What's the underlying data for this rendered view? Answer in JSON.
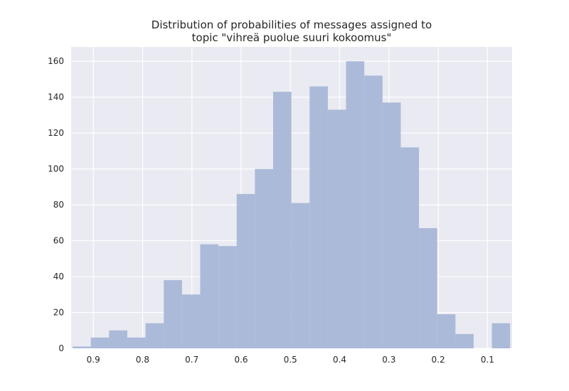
{
  "chart_data": {
    "type": "bar",
    "title_lines": [
      "Distribution of probabilities of messages assigned to",
      "topic \"vihreä puolue suuri kokoomus\""
    ],
    "xlabel": "",
    "ylabel": "",
    "x_reversed": true,
    "xlim": [
      0.945,
      0.05
    ],
    "ylim": [
      0,
      168
    ],
    "x_ticks": [
      0.9,
      0.8,
      0.7,
      0.6,
      0.5,
      0.4,
      0.3,
      0.2,
      0.1
    ],
    "x_tick_labels": [
      "0.9",
      "0.8",
      "0.7",
      "0.6",
      "0.5",
      "0.4",
      "0.3",
      "0.2",
      "0.1"
    ],
    "y_ticks": [
      0,
      20,
      40,
      60,
      80,
      100,
      120,
      140,
      160
    ],
    "y_tick_labels": [
      "0",
      "20",
      "40",
      "60",
      "80",
      "100",
      "120",
      "140",
      "160"
    ],
    "grid": true,
    "bar_color": "#a8b7d6",
    "background_color": "#eaeaf2",
    "grid_color": "#ffffff",
    "bins": [
      {
        "x_start": 0.942,
        "x_end": 0.905,
        "count": 1
      },
      {
        "x_start": 0.905,
        "x_end": 0.868,
        "count": 6
      },
      {
        "x_start": 0.868,
        "x_end": 0.831,
        "count": 10
      },
      {
        "x_start": 0.831,
        "x_end": 0.794,
        "count": 6
      },
      {
        "x_start": 0.794,
        "x_end": 0.757,
        "count": 14
      },
      {
        "x_start": 0.757,
        "x_end": 0.72,
        "count": 38
      },
      {
        "x_start": 0.72,
        "x_end": 0.683,
        "count": 30
      },
      {
        "x_start": 0.683,
        "x_end": 0.646,
        "count": 58
      },
      {
        "x_start": 0.646,
        "x_end": 0.609,
        "count": 57
      },
      {
        "x_start": 0.609,
        "x_end": 0.572,
        "count": 86
      },
      {
        "x_start": 0.572,
        "x_end": 0.535,
        "count": 100
      },
      {
        "x_start": 0.535,
        "x_end": 0.498,
        "count": 143
      },
      {
        "x_start": 0.498,
        "x_end": 0.461,
        "count": 81
      },
      {
        "x_start": 0.461,
        "x_end": 0.424,
        "count": 146
      },
      {
        "x_start": 0.424,
        "x_end": 0.387,
        "count": 133
      },
      {
        "x_start": 0.387,
        "x_end": 0.35,
        "count": 160
      },
      {
        "x_start": 0.35,
        "x_end": 0.313,
        "count": 152
      },
      {
        "x_start": 0.313,
        "x_end": 0.276,
        "count": 137
      },
      {
        "x_start": 0.276,
        "x_end": 0.239,
        "count": 112
      },
      {
        "x_start": 0.239,
        "x_end": 0.202,
        "count": 67
      },
      {
        "x_start": 0.202,
        "x_end": 0.165,
        "count": 19
      },
      {
        "x_start": 0.165,
        "x_end": 0.128,
        "count": 8
      },
      {
        "x_start": 0.128,
        "x_end": 0.091,
        "count": 0
      },
      {
        "x_start": 0.091,
        "x_end": 0.054,
        "count": 14
      }
    ]
  }
}
